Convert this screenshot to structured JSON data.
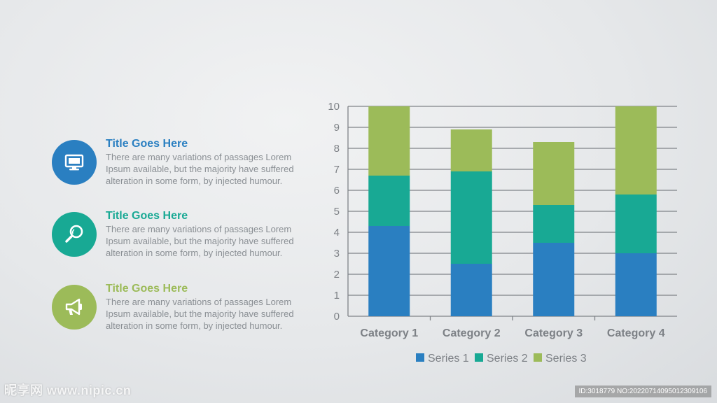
{
  "colors": {
    "series1": "#2a7fc1",
    "series2": "#18a994",
    "series3": "#9cbb59",
    "axis_text": "#7d8186",
    "grid": "#7f8388"
  },
  "items": [
    {
      "title": "Title Goes Here",
      "description": "There are many variations of passages Lorem Ipsum available, but the majority have suffered alteration in some form, by injected humour.",
      "icon": "monitor-icon",
      "color": "#2a7fc1"
    },
    {
      "title": "Title Goes Here",
      "description": "There are many variations of passages Lorem Ipsum available, but the majority have suffered alteration in some form, by injected humour.",
      "icon": "magnifier-icon",
      "color": "#18a994"
    },
    {
      "title": "Title Goes Here",
      "description": "There are many variations of passages Lorem Ipsum available, but the majority have suffered alteration in some form, by injected humour.",
      "icon": "megaphone-icon",
      "color": "#9cbb59"
    }
  ],
  "chart_data": {
    "type": "bar",
    "stacked": true,
    "categories": [
      "Category 1",
      "Category 2",
      "Category 3",
      "Category 4"
    ],
    "series": [
      {
        "name": "Series 1",
        "values": [
          4.3,
          2.5,
          3.5,
          3.0
        ]
      },
      {
        "name": "Series 2",
        "values": [
          2.4,
          4.4,
          1.8,
          2.8
        ]
      },
      {
        "name": "Series 3",
        "values": [
          3.3,
          2.0,
          3.0,
          4.2
        ]
      }
    ],
    "ylim": [
      0,
      10
    ],
    "yticks": [
      0,
      1,
      2,
      3,
      4,
      5,
      6,
      7,
      8,
      9,
      10
    ],
    "grid": true,
    "legend": "bottom"
  },
  "watermark": {
    "left": "昵享网 www.nipic.cn",
    "right": "ID:3018779 NO:20220714095012309106"
  }
}
